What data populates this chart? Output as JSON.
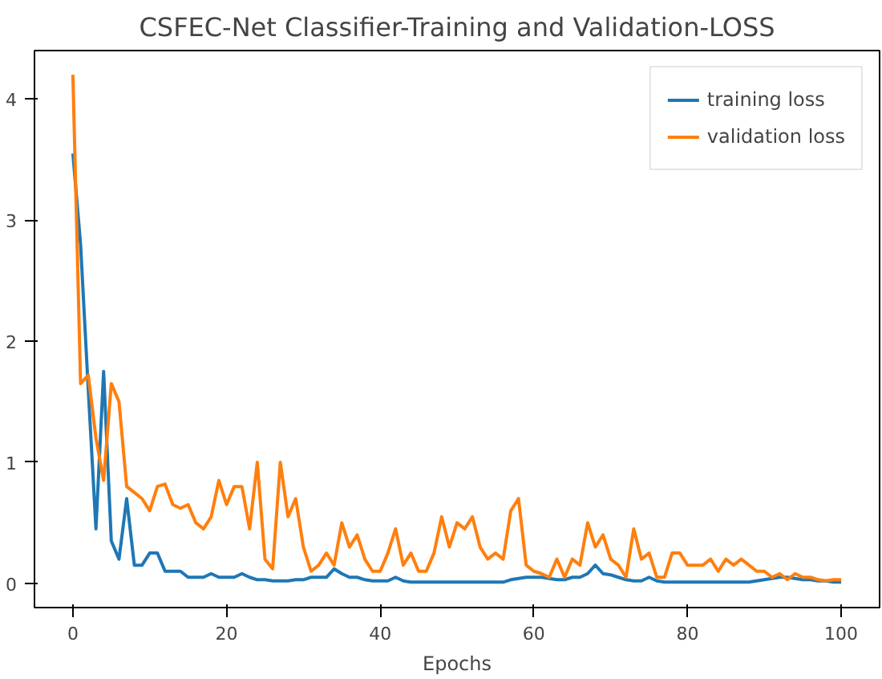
{
  "chart_data": {
    "type": "line",
    "title": "CSFEC-Net Classifier-Training and Validation-LOSS",
    "xlabel": "Epochs",
    "x": [
      0,
      1,
      2,
      3,
      4,
      5,
      6,
      7,
      8,
      9,
      10,
      11,
      12,
      13,
      14,
      15,
      16,
      17,
      18,
      19,
      20,
      21,
      22,
      23,
      24,
      25,
      26,
      27,
      28,
      29,
      30,
      31,
      32,
      33,
      34,
      35,
      36,
      37,
      38,
      39,
      40,
      41,
      42,
      43,
      44,
      45,
      46,
      47,
      48,
      49,
      50,
      51,
      52,
      53,
      54,
      55,
      56,
      57,
      58,
      59,
      60,
      61,
      62,
      63,
      64,
      65,
      66,
      67,
      68,
      69,
      70,
      71,
      72,
      73,
      74,
      75,
      76,
      77,
      78,
      79,
      80,
      81,
      82,
      83,
      84,
      85,
      86,
      87,
      88,
      89,
      90,
      91,
      92,
      93,
      94,
      95,
      96,
      97,
      98,
      99,
      100
    ],
    "series": [
      {
        "name": "training loss",
        "color": "#1f77b4",
        "values": [
          3.55,
          2.8,
          1.6,
          0.45,
          1.75,
          0.35,
          0.2,
          0.7,
          0.15,
          0.15,
          0.25,
          0.25,
          0.1,
          0.1,
          0.1,
          0.05,
          0.05,
          0.05,
          0.08,
          0.05,
          0.05,
          0.05,
          0.08,
          0.05,
          0.03,
          0.03,
          0.02,
          0.02,
          0.02,
          0.03,
          0.03,
          0.05,
          0.05,
          0.05,
          0.12,
          0.08,
          0.05,
          0.05,
          0.03,
          0.02,
          0.02,
          0.02,
          0.05,
          0.02,
          0.01,
          0.01,
          0.01,
          0.01,
          0.01,
          0.01,
          0.01,
          0.01,
          0.01,
          0.01,
          0.01,
          0.01,
          0.01,
          0.03,
          0.04,
          0.05,
          0.05,
          0.05,
          0.04,
          0.03,
          0.03,
          0.05,
          0.05,
          0.08,
          0.15,
          0.08,
          0.07,
          0.05,
          0.03,
          0.02,
          0.02,
          0.05,
          0.02,
          0.01,
          0.01,
          0.01,
          0.01,
          0.01,
          0.01,
          0.01,
          0.01,
          0.01,
          0.01,
          0.01,
          0.01,
          0.02,
          0.03,
          0.04,
          0.05,
          0.05,
          0.04,
          0.03,
          0.03,
          0.02,
          0.02,
          0.01,
          0.01
        ]
      },
      {
        "name": "validation loss",
        "color": "#ff7f0e",
        "values": [
          4.2,
          1.65,
          1.72,
          1.2,
          0.85,
          1.65,
          1.5,
          0.8,
          0.75,
          0.7,
          0.6,
          0.8,
          0.82,
          0.65,
          0.62,
          0.65,
          0.5,
          0.45,
          0.55,
          0.85,
          0.65,
          0.8,
          0.8,
          0.45,
          1.0,
          0.2,
          0.12,
          1.0,
          0.55,
          0.7,
          0.3,
          0.1,
          0.15,
          0.25,
          0.15,
          0.5,
          0.3,
          0.4,
          0.2,
          0.1,
          0.1,
          0.25,
          0.45,
          0.15,
          0.25,
          0.1,
          0.1,
          0.25,
          0.55,
          0.3,
          0.5,
          0.45,
          0.55,
          0.3,
          0.2,
          0.25,
          0.2,
          0.6,
          0.7,
          0.15,
          0.1,
          0.08,
          0.05,
          0.2,
          0.05,
          0.2,
          0.15,
          0.5,
          0.3,
          0.4,
          0.2,
          0.15,
          0.05,
          0.45,
          0.2,
          0.25,
          0.05,
          0.05,
          0.25,
          0.25,
          0.15,
          0.15,
          0.15,
          0.2,
          0.1,
          0.2,
          0.15,
          0.2,
          0.15,
          0.1,
          0.1,
          0.05,
          0.08,
          0.03,
          0.08,
          0.05,
          0.05,
          0.03,
          0.02,
          0.03,
          0.03
        ]
      }
    ],
    "xlim": [
      -5,
      105
    ],
    "ylim": [
      -0.2,
      4.4
    ],
    "xticks": [
      0,
      20,
      40,
      60,
      80,
      100
    ],
    "yticks": [
      0,
      1,
      2,
      3,
      4
    ],
    "grid": false,
    "legend": "top right",
    "marker": "none",
    "line_style": "solid"
  }
}
